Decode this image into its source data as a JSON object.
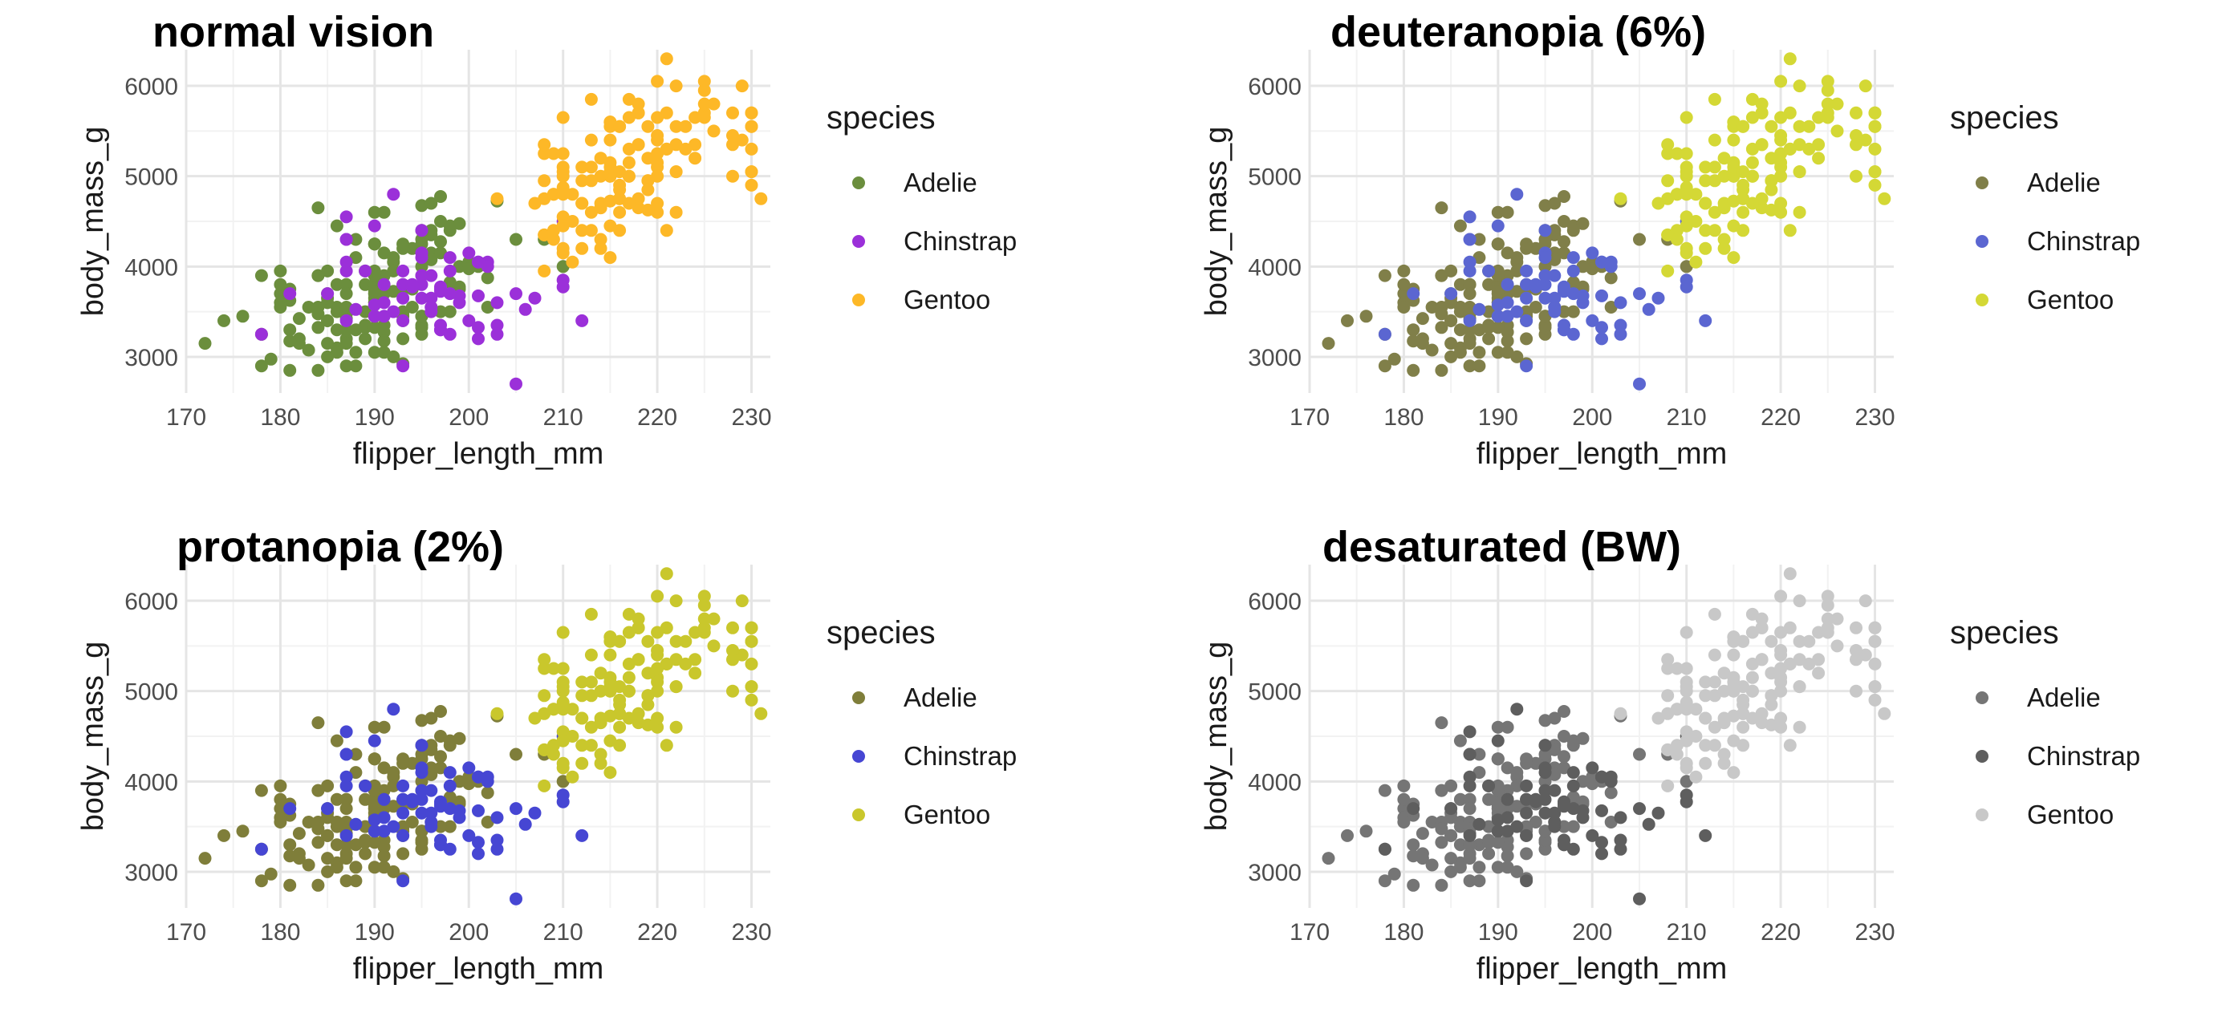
{
  "chart_data": [
    {
      "type": "scatter",
      "title": "normal vision",
      "xlabel": "flipper_length_mm",
      "ylabel": "body_mass_g",
      "xlim": [
        170,
        232
      ],
      "ylim": [
        2600,
        6400
      ],
      "x_ticks": [
        "170",
        "180",
        "190",
        "200",
        "210",
        "220",
        "230"
      ],
      "y_ticks": [
        "3000",
        "4000",
        "5000",
        "6000"
      ],
      "grid": true,
      "legend_title": "species",
      "legend_position": "right",
      "series_names": [
        "Adelie",
        "Chinstrap",
        "Gentoo"
      ],
      "colors": [
        "#6B8E3D",
        "#9B30D9",
        "#FDB827"
      ]
    },
    {
      "type": "scatter",
      "title": "deuteranopia (6%)",
      "xlabel": "flipper_length_mm",
      "ylabel": "body_mass_g",
      "xlim": [
        170,
        232
      ],
      "ylim": [
        2600,
        6400
      ],
      "x_ticks": [
        "170",
        "180",
        "190",
        "200",
        "210",
        "220",
        "230"
      ],
      "y_ticks": [
        "3000",
        "4000",
        "5000",
        "6000"
      ],
      "grid": true,
      "legend_title": "species",
      "legend_position": "right",
      "series_names": [
        "Adelie",
        "Chinstrap",
        "Gentoo"
      ],
      "colors": [
        "#807F49",
        "#5B66D1",
        "#D4D835"
      ]
    },
    {
      "type": "scatter",
      "title": "protanopia (2%)",
      "xlabel": "flipper_length_mm",
      "ylabel": "body_mass_g",
      "xlim": [
        170,
        232
      ],
      "ylim": [
        2600,
        6400
      ],
      "x_ticks": [
        "170",
        "180",
        "190",
        "200",
        "210",
        "220",
        "230"
      ],
      "y_ticks": [
        "3000",
        "4000",
        "5000",
        "6000"
      ],
      "grid": true,
      "legend_title": "species",
      "legend_position": "right",
      "series_names": [
        "Adelie",
        "Chinstrap",
        "Gentoo"
      ],
      "colors": [
        "#7F7E3A",
        "#4646D3",
        "#C9C72C"
      ]
    },
    {
      "type": "scatter",
      "title": "desaturated (BW)",
      "xlabel": "flipper_length_mm",
      "ylabel": "body_mass_g",
      "xlim": [
        170,
        232
      ],
      "ylim": [
        2600,
        6400
      ],
      "x_ticks": [
        "170",
        "180",
        "190",
        "200",
        "210",
        "220",
        "230"
      ],
      "y_ticks": [
        "3000",
        "4000",
        "5000",
        "6000"
      ],
      "grid": true,
      "legend_title": "species",
      "legend_position": "right",
      "series_names": [
        "Adelie",
        "Chinstrap",
        "Gentoo"
      ],
      "colors": [
        "#757575",
        "#5E5E5E",
        "#C8C8C8"
      ]
    }
  ],
  "series_points": {
    "Adelie": [
      [
        181,
        3750
      ],
      [
        186,
        3800
      ],
      [
        195,
        3250
      ],
      [
        193,
        3450
      ],
      [
        190,
        3650
      ],
      [
        181,
        3625
      ],
      [
        195,
        4675
      ],
      [
        193,
        3475
      ],
      [
        190,
        4250
      ],
      [
        186,
        3300
      ],
      [
        180,
        3700
      ],
      [
        182,
        3200
      ],
      [
        191,
        3800
      ],
      [
        198,
        4400
      ],
      [
        185,
        3700
      ],
      [
        195,
        3450
      ],
      [
        197,
        4500
      ],
      [
        184,
        3325
      ],
      [
        194,
        4200
      ],
      [
        174,
        3400
      ],
      [
        180,
        3600
      ],
      [
        189,
        3800
      ],
      [
        185,
        3950
      ],
      [
        180,
        3800
      ],
      [
        187,
        3800
      ],
      [
        183,
        3550
      ],
      [
        187,
        3200
      ],
      [
        172,
        3150
      ],
      [
        180,
        3950
      ],
      [
        178,
        3250
      ],
      [
        178,
        3900
      ],
      [
        188,
        3300
      ],
      [
        184,
        3900
      ],
      [
        195,
        3325
      ],
      [
        196,
        4150
      ],
      [
        190,
        3950
      ],
      [
        180,
        3550
      ],
      [
        181,
        3300
      ],
      [
        184,
        4650
      ],
      [
        182,
        3150
      ],
      [
        195,
        3900
      ],
      [
        186,
        3100
      ],
      [
        196,
        4400
      ],
      [
        185,
        3000
      ],
      [
        190,
        4600
      ],
      [
        182,
        3425
      ],
      [
        179,
        2975
      ],
      [
        190,
        3450
      ],
      [
        191,
        4150
      ],
      [
        186,
        3500
      ],
      [
        188,
        4300
      ],
      [
        190,
        3450
      ],
      [
        200,
        4050
      ],
      [
        187,
        2900
      ],
      [
        191,
        3700
      ],
      [
        186,
        3550
      ],
      [
        193,
        3800
      ],
      [
        181,
        2850
      ],
      [
        194,
        3750
      ],
      [
        185,
        3150
      ],
      [
        195,
        4400
      ],
      [
        185,
        3600
      ],
      [
        192,
        4050
      ],
      [
        184,
        2850
      ],
      [
        192,
        3950
      ],
      [
        195,
        3350
      ],
      [
        188,
        4100
      ],
      [
        190,
        3050
      ],
      [
        198,
        4450
      ],
      [
        190,
        3600
      ],
      [
        190,
        3900
      ],
      [
        196,
        3550
      ],
      [
        197,
        4150
      ],
      [
        190,
        3700
      ],
      [
        195,
        4250
      ],
      [
        191,
        3700
      ],
      [
        184,
        3900
      ],
      [
        187,
        3550
      ],
      [
        195,
        4000
      ],
      [
        189,
        3200
      ],
      [
        196,
        4700
      ],
      [
        187,
        3800
      ],
      [
        193,
        4200
      ],
      [
        191,
        3350
      ],
      [
        194,
        3550
      ],
      [
        190,
        3800
      ],
      [
        189,
        3500
      ],
      [
        189,
        3950
      ],
      [
        190,
        3600
      ],
      [
        202,
        3550
      ],
      [
        205,
        4300
      ],
      [
        185,
        3400
      ],
      [
        186,
        4450
      ],
      [
        187,
        3300
      ],
      [
        208,
        4300
      ],
      [
        190,
        3700
      ],
      [
        196,
        4350
      ],
      [
        178,
        2900
      ],
      [
        192,
        4100
      ],
      [
        192,
        3725
      ],
      [
        203,
        4725
      ],
      [
        183,
        3075
      ],
      [
        190,
        4250
      ],
      [
        193,
        2925
      ],
      [
        184,
        3550
      ],
      [
        199,
        3750
      ],
      [
        190,
        3900
      ],
      [
        181,
        3175
      ],
      [
        197,
        4775
      ],
      [
        198,
        3825
      ],
      [
        191,
        4600
      ],
      [
        193,
        3200
      ],
      [
        197,
        4275
      ],
      [
        191,
        3900
      ],
      [
        196,
        4075
      ],
      [
        188,
        2900
      ],
      [
        199,
        3775
      ],
      [
        189,
        3350
      ],
      [
        189,
        3325
      ],
      [
        187,
        3150
      ],
      [
        198,
        3500
      ],
      [
        176,
        3450
      ],
      [
        202,
        3875
      ],
      [
        186,
        3050
      ],
      [
        199,
        4000
      ],
      [
        191,
        3275
      ],
      [
        195,
        4300
      ],
      [
        191,
        3050
      ],
      [
        210,
        4000
      ],
      [
        190,
        3325
      ],
      [
        197,
        3500
      ],
      [
        193,
        3500
      ],
      [
        199,
        4475
      ],
      [
        187,
        3425
      ],
      [
        190,
        3900
      ],
      [
        191,
        3175
      ],
      [
        200,
        3975
      ],
      [
        185,
        3400
      ],
      [
        193,
        4250
      ],
      [
        193,
        3400
      ],
      [
        187,
        3475
      ],
      [
        188,
        3050
      ],
      [
        190,
        3725
      ],
      [
        192,
        3000
      ],
      [
        185,
        3650
      ],
      [
        190,
        4250
      ],
      [
        184,
        3475
      ],
      [
        195,
        3450
      ],
      [
        193,
        3750
      ],
      [
        187,
        3700
      ],
      [
        201,
        4000
      ]
    ],
    "Chinstrap": [
      [
        192,
        3500
      ],
      [
        196,
        3900
      ],
      [
        193,
        3650
      ],
      [
        188,
        3525
      ],
      [
        197,
        3725
      ],
      [
        198,
        3950
      ],
      [
        178,
        3250
      ],
      [
        197,
        3750
      ],
      [
        195,
        4150
      ],
      [
        198,
        3700
      ],
      [
        193,
        3800
      ],
      [
        194,
        3775
      ],
      [
        185,
        3700
      ],
      [
        201,
        4050
      ],
      [
        190,
        3575
      ],
      [
        201,
        4050
      ],
      [
        197,
        3300
      ],
      [
        181,
        3700
      ],
      [
        190,
        3450
      ],
      [
        195,
        4400
      ],
      [
        191,
        3600
      ],
      [
        187,
        3400
      ],
      [
        193,
        2900
      ],
      [
        195,
        3800
      ],
      [
        197,
        3300
      ],
      [
        200,
        4150
      ],
      [
        200,
        3400
      ],
      [
        191,
        3800
      ],
      [
        205,
        3700
      ],
      [
        187,
        4550
      ],
      [
        201,
        3200
      ],
      [
        187,
        4300
      ],
      [
        203,
        3350
      ],
      [
        195,
        4100
      ],
      [
        199,
        3600
      ],
      [
        195,
        3900
      ],
      [
        210,
        3850
      ],
      [
        192,
        4800
      ],
      [
        205,
        2700
      ],
      [
        210,
        4500
      ],
      [
        187,
        3950
      ],
      [
        196,
        3650
      ],
      [
        196,
        3550
      ],
      [
        196,
        3500
      ],
      [
        201,
        3675
      ],
      [
        190,
        4450
      ],
      [
        212,
        3400
      ],
      [
        187,
        4300
      ],
      [
        198,
        3250
      ],
      [
        199,
        3675
      ],
      [
        201,
        3325
      ],
      [
        193,
        3950
      ],
      [
        203,
        3600
      ],
      [
        187,
        4050
      ],
      [
        197,
        3350
      ],
      [
        191,
        3450
      ],
      [
        203,
        3250
      ],
      [
        202,
        4050
      ],
      [
        194,
        3800
      ],
      [
        206,
        3525
      ],
      [
        189,
        3950
      ],
      [
        195,
        3650
      ],
      [
        207,
        3650
      ],
      [
        202,
        4000
      ],
      [
        193,
        3400
      ],
      [
        210,
        3775
      ],
      [
        198,
        4100
      ],
      [
        197,
        3775
      ]
    ],
    "Gentoo": [
      [
        211,
        4500
      ],
      [
        230,
        5700
      ],
      [
        210,
        4450
      ],
      [
        218,
        5700
      ],
      [
        215,
        5400
      ],
      [
        210,
        4550
      ],
      [
        211,
        4800
      ],
      [
        219,
        5200
      ],
      [
        209,
        4400
      ],
      [
        215,
        5150
      ],
      [
        214,
        4650
      ],
      [
        216,
        5550
      ],
      [
        214,
        4650
      ],
      [
        213,
        5850
      ],
      [
        210,
        4200
      ],
      [
        217,
        5850
      ],
      [
        210,
        4150
      ],
      [
        221,
        6300
      ],
      [
        209,
        4800
      ],
      [
        222,
        5350
      ],
      [
        218,
        5700
      ],
      [
        215,
        5000
      ],
      [
        213,
        4400
      ],
      [
        215,
        5050
      ],
      [
        215,
        5000
      ],
      [
        215,
        5100
      ],
      [
        215,
        4100
      ],
      [
        210,
        5650
      ],
      [
        220,
        4600
      ],
      [
        222,
        5550
      ],
      [
        209,
        5250
      ],
      [
        207,
        4700
      ],
      [
        230,
        5050
      ],
      [
        220,
        6050
      ],
      [
        220,
        5150
      ],
      [
        213,
        5400
      ],
      [
        219,
        4950
      ],
      [
        208,
        5250
      ],
      [
        208,
        4350
      ],
      [
        208,
        5350
      ],
      [
        225,
        5700
      ],
      [
        210,
        5000
      ],
      [
        216,
        4400
      ],
      [
        222,
        5050
      ],
      [
        217,
        5000
      ],
      [
        210,
        5100
      ],
      [
        225,
        5650
      ],
      [
        213,
        4600
      ],
      [
        215,
        5550
      ],
      [
        210,
        5250
      ],
      [
        220,
        4700
      ],
      [
        210,
        5050
      ],
      [
        225,
        6050
      ],
      [
        217,
        5150
      ],
      [
        220,
        5400
      ],
      [
        208,
        4950
      ],
      [
        220,
        5250
      ],
      [
        208,
        4350
      ],
      [
        224,
        5350
      ],
      [
        208,
        3950
      ],
      [
        221,
        5700
      ],
      [
        214,
        4300
      ],
      [
        231,
        4750
      ],
      [
        219,
        5550
      ],
      [
        230,
        4900
      ],
      [
        214,
        4200
      ],
      [
        229,
        5400
      ],
      [
        220,
        5100
      ],
      [
        223,
        5300
      ],
      [
        216,
        4850
      ],
      [
        221,
        5300
      ],
      [
        221,
        4400
      ],
      [
        217,
        5000
      ],
      [
        216,
        4900
      ],
      [
        230,
        5050
      ],
      [
        209,
        4300
      ],
      [
        220,
        5000
      ],
      [
        215,
        4450
      ],
      [
        223,
        5550
      ],
      [
        212,
        4200
      ],
      [
        221,
        5300
      ],
      [
        212,
        4400
      ],
      [
        224,
        5650
      ],
      [
        212,
        4700
      ],
      [
        228,
        5700
      ],
      [
        218,
        4650
      ],
      [
        218,
        5800
      ],
      [
        212,
        4700
      ],
      [
        230,
        5550
      ],
      [
        218,
        4750
      ],
      [
        228,
        5000
      ],
      [
        212,
        5100
      ],
      [
        224,
        5200
      ],
      [
        214,
        4700
      ],
      [
        226,
        5800
      ],
      [
        216,
        4600
      ],
      [
        222,
        6000
      ],
      [
        203,
        4750
      ],
      [
        225,
        5950
      ],
      [
        219,
        4625
      ],
      [
        228,
        5450
      ],
      [
        215,
        4725
      ],
      [
        228,
        5350
      ],
      [
        216,
        4750
      ],
      [
        215,
        5600
      ],
      [
        210,
        4875
      ],
      [
        219,
        4950
      ],
      [
        208,
        4750
      ],
      [
        209,
        4800
      ],
      [
        216,
        5050
      ],
      [
        229,
        6000
      ],
      [
        213,
        5100
      ],
      [
        230,
        5550
      ],
      [
        217,
        4700
      ],
      [
        230,
        5300
      ],
      [
        222,
        5050
      ],
      [
        214,
        5000
      ],
      [
        212,
        4950
      ],
      [
        214,
        5200
      ],
      [
        226,
        5500
      ],
      [
        216,
        4750
      ],
      [
        222,
        4600
      ],
      [
        225,
        5800
      ],
      [
        217,
        5300
      ],
      [
        230,
        5700
      ],
      [
        220,
        5650
      ],
      [
        210,
        4800
      ],
      [
        215,
        5600
      ],
      [
        213,
        4950
      ],
      [
        218,
        5350
      ],
      [
        210,
        4450
      ],
      [
        220,
        5450
      ],
      [
        211,
        4050
      ],
      [
        216,
        5550
      ],
      [
        218,
        5350
      ],
      [
        219,
        4850
      ],
      [
        217,
        5650
      ]
    ]
  }
}
